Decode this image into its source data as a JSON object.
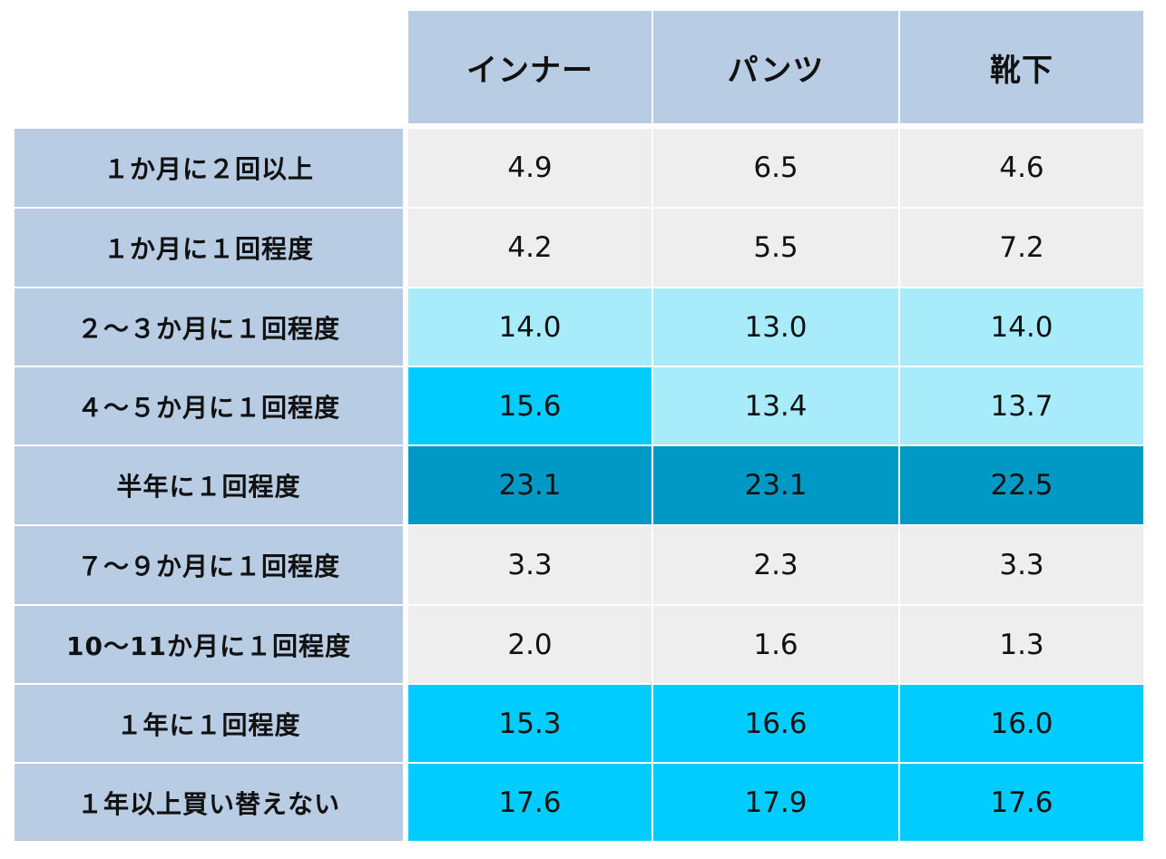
{
  "chart_data": {
    "type": "table",
    "columns": [
      "インナー",
      "パンツ",
      "靴下"
    ],
    "rows": [
      {
        "label": "１か月に２回以上",
        "values": [
          "4.9",
          "6.5",
          "4.6"
        ],
        "shades": [
          "low",
          "low",
          "low"
        ]
      },
      {
        "label": "１か月に１回程度",
        "values": [
          "4.2",
          "5.5",
          "7.2"
        ],
        "shades": [
          "low",
          "low",
          "low"
        ]
      },
      {
        "label": "２～３か月に１回程度",
        "values": [
          "14.0",
          "13.0",
          "14.0"
        ],
        "shades": [
          "mid",
          "mid",
          "mid"
        ]
      },
      {
        "label": "４～５か月に１回程度",
        "values": [
          "15.6",
          "13.4",
          "13.7"
        ],
        "shades": [
          "high",
          "mid",
          "mid"
        ]
      },
      {
        "label": "半年に１回程度",
        "values": [
          "23.1",
          "23.1",
          "22.5"
        ],
        "shades": [
          "top",
          "top",
          "top"
        ]
      },
      {
        "label": "７～９か月に１回程度",
        "values": [
          "3.3",
          "2.3",
          "3.3"
        ],
        "shades": [
          "low",
          "low",
          "low"
        ]
      },
      {
        "label": "10～11か月に１回程度",
        "values": [
          "2.0",
          "1.6",
          "1.3"
        ],
        "shades": [
          "low",
          "low",
          "low"
        ]
      },
      {
        "label": "１年に１回程度",
        "values": [
          "15.3",
          "16.6",
          "16.0"
        ],
        "shades": [
          "high",
          "high",
          "high"
        ]
      },
      {
        "label": "１年以上買い替えない",
        "values": [
          "17.6",
          "17.9",
          "17.6"
        ],
        "shades": [
          "high",
          "high",
          "high"
        ]
      }
    ],
    "colors": {
      "header": "#b8cce4",
      "label": "#b8cce4",
      "low": "#eeeeee",
      "mid": "#a8ecfc",
      "high": "#00ccff",
      "top": "#0099c6",
      "text": "#111111"
    }
  }
}
